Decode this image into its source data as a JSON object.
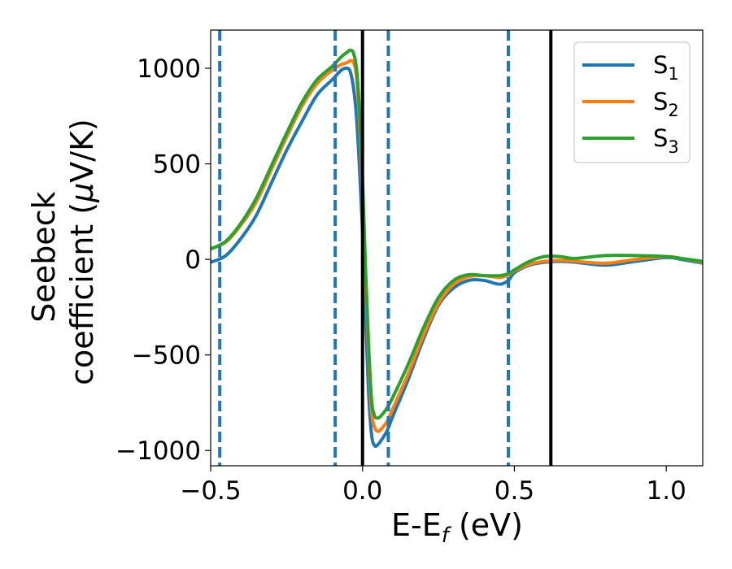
{
  "chart_data": {
    "type": "line",
    "xlabel": "E-E",
    "xlabel_sub": "f",
    "xlabel_unit": " (eV)",
    "ylabel_line1": "Seebeck",
    "ylabel_line2_pre": "coefficient  (",
    "ylabel_mu": "μ",
    "ylabel_line2_post": "V/K)",
    "xlim": [
      -0.5,
      1.12
    ],
    "ylim": [
      -1080,
      1200
    ],
    "xticks": [
      -0.5,
      0.0,
      0.5,
      1.0
    ],
    "xtick_labels": [
      "−0.5",
      "0.0",
      "0.5",
      "1.0"
    ],
    "yticks": [
      -1000,
      -500,
      0,
      500,
      1000
    ],
    "ytick_labels": [
      "−1000",
      "−500",
      "0",
      "500",
      "1000"
    ],
    "grid": false,
    "legend_position": "top-right",
    "vlines_dashed": {
      "x": [
        -0.47,
        -0.09,
        0.085,
        0.48
      ],
      "color": "#1f77b4"
    },
    "vlines_solid": {
      "x": [
        0.0,
        0.62
      ],
      "color": "#000000"
    },
    "series": [
      {
        "name": "S",
        "sub": "1",
        "color": "#1f77b4",
        "x": [
          -0.5,
          -0.45,
          -0.4,
          -0.35,
          -0.3,
          -0.25,
          -0.2,
          -0.15,
          -0.1,
          -0.07,
          -0.05,
          -0.04,
          -0.03,
          -0.02,
          -0.01,
          0.0,
          0.01,
          0.02,
          0.03,
          0.04,
          0.05,
          0.06,
          0.08,
          0.1,
          0.15,
          0.2,
          0.25,
          0.3,
          0.35,
          0.4,
          0.45,
          0.48,
          0.5,
          0.55,
          0.6,
          0.65,
          0.7,
          0.8,
          0.9,
          1.0,
          1.05,
          1.12
        ],
        "y": [
          -15,
          20,
          110,
          230,
          400,
          570,
          720,
          860,
          940,
          990,
          1000,
          980,
          900,
          750,
          480,
          150,
          -300,
          -700,
          -920,
          -975,
          -970,
          -950,
          -900,
          -820,
          -630,
          -420,
          -240,
          -150,
          -110,
          -110,
          -130,
          -110,
          -70,
          -30,
          -15,
          -10,
          -15,
          -30,
          -10,
          10,
          0,
          -20
        ]
      },
      {
        "name": "S",
        "sub": "2",
        "color": "#ff7f0e",
        "x": [
          -0.5,
          -0.45,
          -0.4,
          -0.35,
          -0.3,
          -0.25,
          -0.2,
          -0.15,
          -0.1,
          -0.07,
          -0.05,
          -0.04,
          -0.03,
          -0.02,
          -0.01,
          0.0,
          0.01,
          0.02,
          0.03,
          0.04,
          0.05,
          0.06,
          0.08,
          0.1,
          0.15,
          0.2,
          0.25,
          0.3,
          0.35,
          0.4,
          0.45,
          0.48,
          0.5,
          0.55,
          0.6,
          0.65,
          0.7,
          0.8,
          0.9,
          1.0,
          1.05,
          1.12
        ],
        "y": [
          55,
          90,
          180,
          300,
          470,
          640,
          800,
          920,
          990,
          1020,
          1030,
          1040,
          1030,
          960,
          720,
          350,
          -100,
          -500,
          -800,
          -880,
          -900,
          -890,
          -850,
          -780,
          -600,
          -400,
          -230,
          -130,
          -90,
          -85,
          -95,
          -80,
          -60,
          -25,
          -10,
          -5,
          -10,
          -20,
          0,
          15,
          5,
          -15
        ]
      },
      {
        "name": "S",
        "sub": "3",
        "color": "#2ca02c",
        "x": [
          -0.5,
          -0.45,
          -0.4,
          -0.35,
          -0.3,
          -0.25,
          -0.2,
          -0.15,
          -0.1,
          -0.07,
          -0.05,
          -0.04,
          -0.03,
          -0.02,
          -0.01,
          0.0,
          0.01,
          0.02,
          0.03,
          0.04,
          0.05,
          0.06,
          0.08,
          0.1,
          0.15,
          0.2,
          0.25,
          0.3,
          0.35,
          0.4,
          0.45,
          0.48,
          0.5,
          0.55,
          0.6,
          0.65,
          0.7,
          0.8,
          0.9,
          1.0,
          1.05,
          1.12
        ],
        "y": [
          55,
          95,
          190,
          320,
          490,
          660,
          820,
          940,
          1010,
          1060,
          1085,
          1095,
          1080,
          1000,
          780,
          420,
          -50,
          -450,
          -740,
          -820,
          -830,
          -820,
          -780,
          -720,
          -550,
          -360,
          -200,
          -110,
          -80,
          -85,
          -85,
          -75,
          -55,
          -10,
          15,
          15,
          5,
          20,
          20,
          15,
          5,
          -10
        ]
      }
    ]
  }
}
